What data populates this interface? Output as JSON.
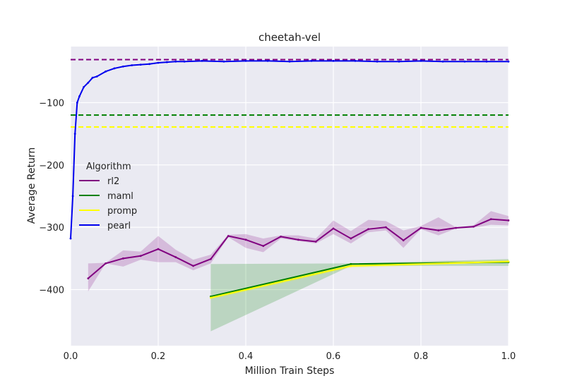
{
  "chart_data": {
    "type": "line",
    "title": "cheetah-vel",
    "xlabel": "Million Train Steps",
    "ylabel": "Average Return",
    "xlim": [
      0.0,
      1.0
    ],
    "ylim": [
      -490,
      -10
    ],
    "xticks": [
      0.0,
      0.2,
      0.4,
      0.6,
      0.8,
      1.0
    ],
    "xtick_labels": [
      "0.0",
      "0.2",
      "0.4",
      "0.6",
      "0.8",
      "1.0"
    ],
    "yticks": [
      -100,
      -200,
      -300,
      -400
    ],
    "ytick_labels": [
      "−100",
      "−200",
      "−300",
      "−400"
    ],
    "grid": true,
    "legend": {
      "title": "Algorithm",
      "position": "center-left",
      "entries": [
        "rl2",
        "maml",
        "promp",
        "pearl"
      ]
    },
    "baselines": [
      {
        "series": "rl2",
        "y": -31,
        "color": "#800080",
        "style": "dashed"
      },
      {
        "series": "maml",
        "y": -120,
        "color": "#008000",
        "style": "dashed"
      },
      {
        "series": "promp",
        "y": -139,
        "color": "#ffff00",
        "style": "dashed"
      }
    ],
    "series": [
      {
        "name": "rl2",
        "color": "#800080",
        "x": [
          0.04,
          0.08,
          0.12,
          0.16,
          0.2,
          0.24,
          0.28,
          0.32,
          0.36,
          0.4,
          0.44,
          0.48,
          0.52,
          0.56,
          0.6,
          0.64,
          0.68,
          0.72,
          0.76,
          0.8,
          0.84,
          0.88,
          0.92,
          0.96,
          1.0
        ],
        "y": [
          -382,
          -358,
          -350,
          -346,
          -335,
          -348,
          -362,
          -351,
          -314,
          -320,
          -330,
          -315,
          -320,
          -323,
          -302,
          -318,
          -303,
          -300,
          -321,
          -301,
          -305,
          -301,
          -299,
          -287,
          -289
        ],
        "lower": [
          -403,
          -358,
          -363,
          -352,
          -356,
          -356,
          -369,
          -358,
          -316,
          -333,
          -340,
          -318,
          -322,
          -326,
          -311,
          -326,
          -308,
          -305,
          -333,
          -303,
          -313,
          -302,
          -301,
          -296,
          -297
        ],
        "upper": [
          -358,
          -357,
          -337,
          -339,
          -314,
          -336,
          -352,
          -344,
          -312,
          -311,
          -318,
          -313,
          -313,
          -318,
          -289,
          -306,
          -288,
          -290,
          -305,
          -298,
          -284,
          -300,
          -297,
          -274,
          -282
        ]
      },
      {
        "name": "maml",
        "color": "#008000",
        "x": [
          0.32,
          0.64,
          1.0
        ],
        "y": [
          -411,
          -359,
          -356
        ],
        "lower": [
          -467,
          -362,
          -362
        ],
        "upper": [
          -359,
          -358,
          -351
        ]
      },
      {
        "name": "promp",
        "color": "#ffff00",
        "x": [
          0.32,
          0.64,
          1.0
        ],
        "y": [
          -413,
          -362,
          -355
        ],
        "lower": [
          -416,
          -365,
          -357
        ],
        "upper": [
          -410,
          -359,
          -352
        ]
      },
      {
        "name": "pearl",
        "color": "#0000ee",
        "x": [
          0.0,
          0.005,
          0.01,
          0.015,
          0.02,
          0.03,
          0.04,
          0.05,
          0.06,
          0.08,
          0.1,
          0.12,
          0.14,
          0.16,
          0.18,
          0.2,
          0.22,
          0.24,
          0.26,
          0.3,
          0.35,
          0.4,
          0.45,
          0.5,
          0.55,
          0.6,
          0.65,
          0.7,
          0.75,
          0.8,
          0.85,
          0.9,
          0.95,
          1.0
        ],
        "y": [
          -318,
          -250,
          -150,
          -100,
          -90,
          -75,
          -68,
          -60,
          -58,
          -50,
          -45,
          -42,
          -40,
          -39,
          -38,
          -36,
          -35,
          -34,
          -34,
          -33,
          -34,
          -33,
          -33,
          -34,
          -33,
          -33,
          -33,
          -34,
          -34,
          -33,
          -34,
          -34,
          -34,
          -34
        ]
      }
    ]
  }
}
